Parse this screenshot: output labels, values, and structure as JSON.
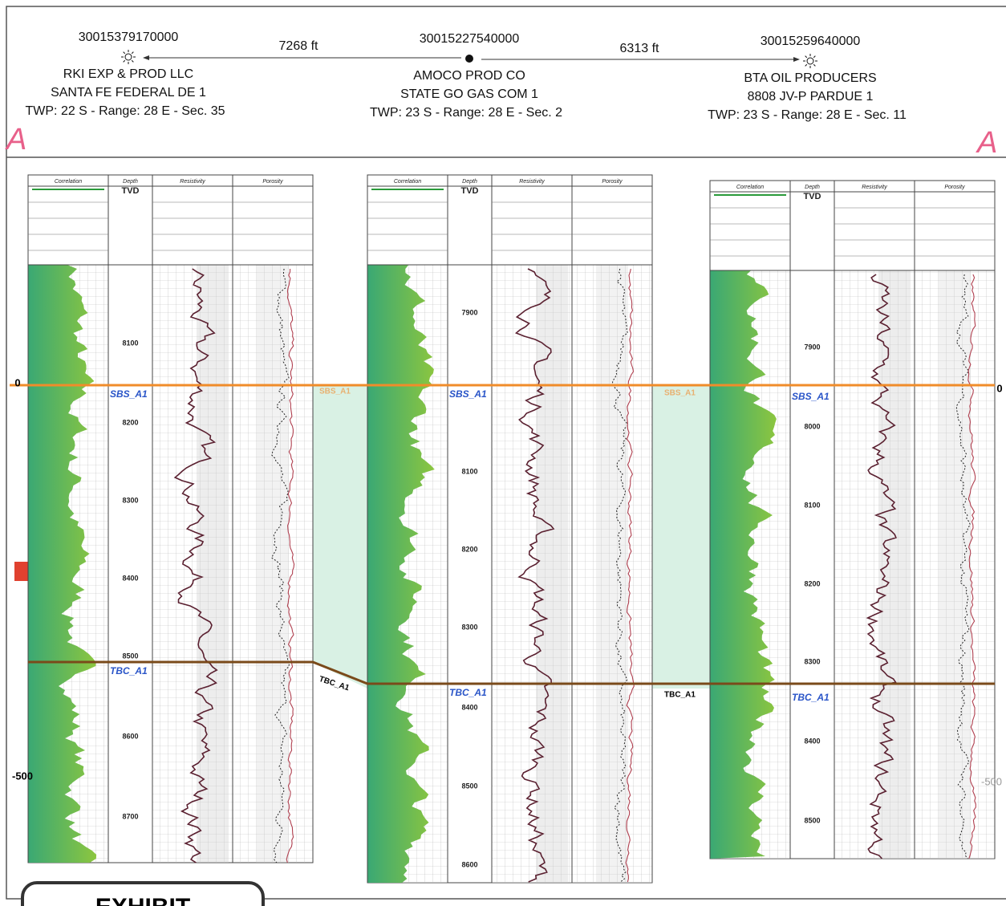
{
  "header": {
    "section_start": "A",
    "section_end": "A",
    "distances": [
      "7268 ft",
      "6313 ft"
    ],
    "wells": [
      {
        "api": "30015379170000",
        "operator": "RKI EXP & PROD LLC",
        "lease": "SANTA FE FEDERAL DE 1",
        "location": "TWP: 22  S - Range: 28 E - Sec. 35"
      },
      {
        "api": "30015227540000",
        "operator": "AMOCO PROD CO",
        "lease": "STATE GO GAS COM 1",
        "location": "TWP: 23  S - Range: 28 E - Sec. 2"
      },
      {
        "api": "30015259640000",
        "operator": "BTA OIL PRODUCERS",
        "lease": "8808 JV-P PARDUE 1",
        "location": "TWP: 23  S - Range: 28 E - Sec. 11"
      }
    ]
  },
  "logs": [
    {
      "tracks": [
        "Correlation",
        "Depth",
        "Resistivity",
        "Porosity"
      ],
      "depth_type": "TVD",
      "depths": [
        "8100",
        "8200",
        "8300",
        "8400",
        "8500",
        "8600",
        "8700"
      ],
      "top_marker": "SBS_A1",
      "base_marker": "TBC_A1"
    },
    {
      "tracks": [
        "Correlation",
        "Depth",
        "Resistivity",
        "Porosity"
      ],
      "depth_type": "TVD",
      "depths": [
        "7900",
        "8100",
        "8200",
        "8300",
        "8400",
        "8500",
        "8600"
      ],
      "top_marker": "SBS_A1",
      "base_marker": "TBC_A1"
    },
    {
      "tracks": [
        "Correlation",
        "Depth",
        "Resistivity",
        "Porosity"
      ],
      "depth_type": "TVD",
      "depths": [
        "7900",
        "8000",
        "8100",
        "8200",
        "8300",
        "8400",
        "8500"
      ],
      "top_marker": "SBS_A1",
      "base_marker": "TBC_A1"
    }
  ],
  "correlations": {
    "top_between": [
      "SBS_A1",
      "SBS_A1"
    ],
    "base_between": [
      "TBC_A1",
      "TBC_A1"
    ]
  },
  "datum": {
    "left_top": "0",
    "left_bottom": "-500",
    "right_top": "0",
    "right_bottom": "-500"
  },
  "exhibit": "EXHIBIT"
}
